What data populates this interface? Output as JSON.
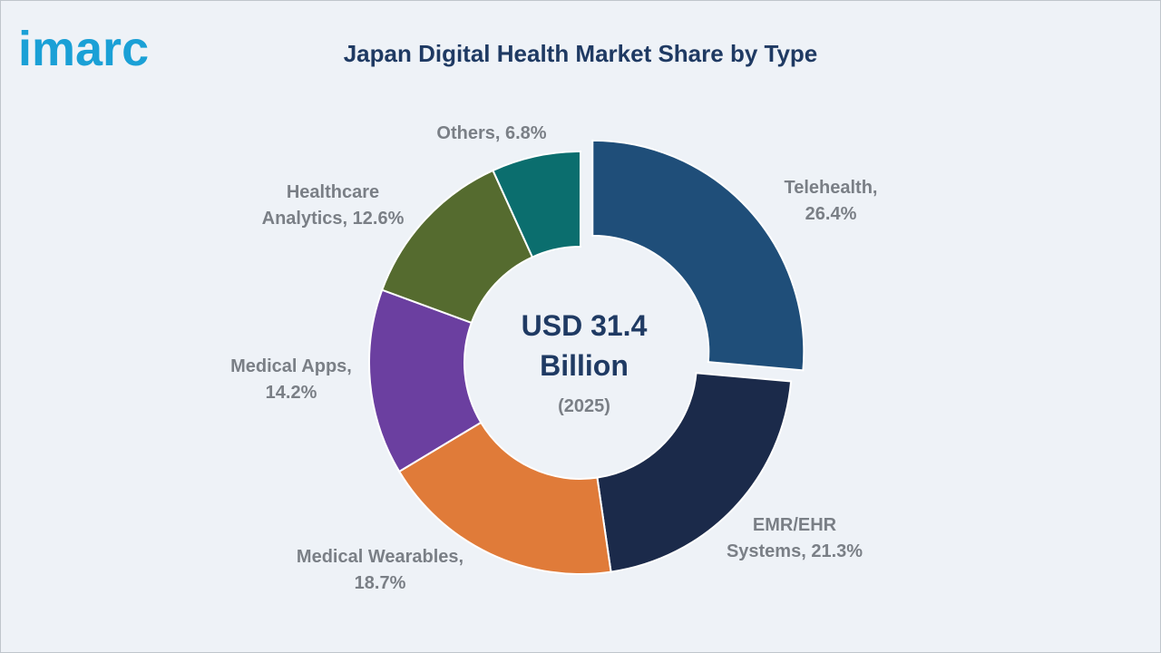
{
  "brand": {
    "name": "imarc",
    "color": "#1aa0d6"
  },
  "chart_data": {
    "type": "pie",
    "title": "Japan Digital Health Market Share by Type",
    "center_label": {
      "line1": "USD 31.4",
      "line2": "Billion",
      "line3": "(2025)"
    },
    "unit": "%",
    "slices": [
      {
        "label": "Telehealth",
        "value": 26.4,
        "color": "#1f4e79",
        "exploded": true,
        "label_lines": [
          "Telehealth,",
          "26.4%"
        ]
      },
      {
        "label": "EMR/EHR Systems",
        "value": 21.3,
        "color": "#1b2a4a",
        "exploded": false,
        "label_lines": [
          "EMR/EHR",
          "Systems, 21.3%"
        ]
      },
      {
        "label": "Medical Wearables",
        "value": 18.7,
        "color": "#e07b39",
        "exploded": false,
        "label_lines": [
          "Medical Wearables,",
          "18.7%"
        ]
      },
      {
        "label": "Medical Apps",
        "value": 14.2,
        "color": "#6b3fa0",
        "exploded": false,
        "label_lines": [
          "Medical Apps,",
          "14.2%"
        ]
      },
      {
        "label": "Healthcare Analytics",
        "value": 12.6,
        "color": "#556b2f",
        "exploded": false,
        "label_lines": [
          "Healthcare",
          "Analytics, 12.6%"
        ]
      },
      {
        "label": "Others",
        "value": 6.8,
        "color": "#0b6e6e",
        "exploded": false,
        "label_lines": [
          "Others, 6.8%"
        ]
      }
    ]
  }
}
